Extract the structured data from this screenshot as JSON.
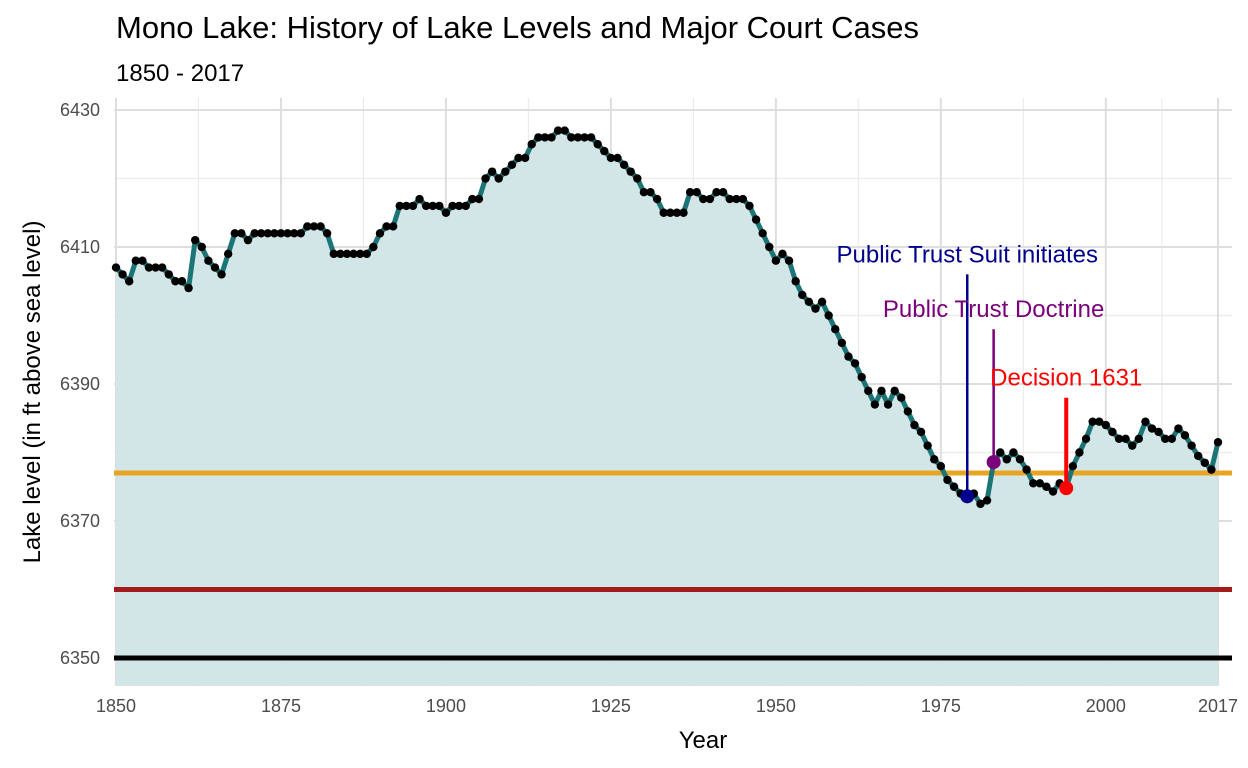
{
  "chart_data": {
    "type": "area",
    "title": "Mono Lake: History of Lake Levels and Major Court Cases",
    "subtitle": "1850 - 2017",
    "xlabel": "Year",
    "ylabel": "Lake level (in ft above sea level)",
    "xlim": [
      1850,
      2017
    ],
    "ylim": [
      6347,
      6430
    ],
    "x_ticks": [
      1850,
      1875,
      1900,
      1925,
      1950,
      1975,
      2000,
      2017
    ],
    "x_tick_labels": [
      "1850",
      "1875",
      "1900",
      "1925",
      "1950",
      "1975",
      "2000",
      "2017"
    ],
    "y_ticks": [
      6350,
      6370,
      6390,
      6410,
      6430
    ],
    "y_tick_labels": [
      "6350",
      "6370",
      "6390",
      "6410",
      "6430"
    ],
    "grid": true,
    "colors": {
      "area_fill": "#d0e5e6",
      "line": "#1b7576",
      "points": "#000000",
      "stable_level": "#e8a524",
      "threshold_level": "#a31c1c",
      "base_level": "#000000"
    },
    "reference_lines": [
      {
        "y": 6377,
        "color": "#e8a524"
      },
      {
        "y": 6360,
        "color": "#a31c1c"
      },
      {
        "y": 6350,
        "color": "#000000"
      }
    ],
    "annotations": [
      {
        "label": "Public Trust Suit initiates",
        "year": 1979,
        "level": 6373.6,
        "label_level": 6406,
        "color": "#00008b"
      },
      {
        "label": "Public Trust Doctrine",
        "year": 1983,
        "level": 6378.6,
        "label_level": 6398,
        "color": "#7a007a"
      },
      {
        "label": "Decision 1631",
        "year": 1994,
        "level": 6374.8,
        "label_level": 6388,
        "color": "#ff0000"
      }
    ],
    "series": [
      {
        "x": [
          1850,
          1851,
          1852,
          1853,
          1854,
          1855,
          1856,
          1857,
          1858,
          1859,
          1860,
          1861,
          1862,
          1863,
          1864,
          1865,
          1866,
          1867,
          1868,
          1869,
          1870,
          1871,
          1872,
          1873,
          1874,
          1875,
          1876,
          1877,
          1878,
          1879,
          1880,
          1881,
          1882,
          1883,
          1884,
          1885,
          1886,
          1887,
          1888,
          1889,
          1890,
          1891,
          1892,
          1893,
          1894,
          1895,
          1896,
          1897,
          1898,
          1899,
          1900,
          1901,
          1902,
          1903,
          1904,
          1905,
          1906,
          1907,
          1908,
          1909,
          1910,
          1911,
          1912,
          1913,
          1914,
          1915,
          1916,
          1917,
          1918,
          1919,
          1920,
          1921,
          1922,
          1923,
          1924,
          1925,
          1926,
          1927,
          1928,
          1929,
          1930,
          1931,
          1932,
          1933,
          1934,
          1935,
          1936,
          1937,
          1938,
          1939,
          1940,
          1941,
          1942,
          1943,
          1944,
          1945,
          1946,
          1947,
          1948,
          1949,
          1950,
          1951,
          1952,
          1953,
          1954,
          1955,
          1956,
          1957,
          1958,
          1959,
          1960,
          1961,
          1962,
          1963,
          1964,
          1965,
          1966,
          1967,
          1968,
          1969,
          1970,
          1971,
          1972,
          1973,
          1974,
          1975,
          1976,
          1977,
          1978,
          1979,
          1980,
          1981,
          1982,
          1983,
          1984,
          1985,
          1986,
          1987,
          1988,
          1989,
          1990,
          1991,
          1992,
          1993,
          1994,
          1995,
          1996,
          1997,
          1998,
          1999,
          2000,
          2001,
          2002,
          2003,
          2004,
          2005,
          2006,
          2007,
          2008,
          2009,
          2010,
          2011,
          2012,
          2013,
          2014,
          2015,
          2016,
          2017
        ],
        "values": [
          6407,
          6406,
          6405,
          6408,
          6408,
          6407,
          6407,
          6407,
          6406,
          6405,
          6405,
          6404,
          6411,
          6410,
          6408,
          6407,
          6406,
          6409,
          6412,
          6412,
          6411,
          6412,
          6412,
          6412,
          6412,
          6412,
          6412,
          6412,
          6412,
          6413,
          6413,
          6413,
          6412,
          6409,
          6409,
          6409,
          6409,
          6409,
          6409,
          6410,
          6412,
          6413,
          6413,
          6416,
          6416,
          6416,
          6417,
          6416,
          6416,
          6416,
          6415,
          6416,
          6416,
          6416,
          6417,
          6417,
          6420,
          6421,
          6420,
          6421,
          6422,
          6423,
          6423,
          6425,
          6426,
          6426,
          6426,
          6427,
          6427,
          6426,
          6426,
          6426,
          6426,
          6425,
          6424,
          6423,
          6423,
          6422,
          6421,
          6420,
          6418,
          6418,
          6417,
          6415,
          6415,
          6415,
          6415,
          6418,
          6418,
          6417,
          6417,
          6418,
          6418,
          6417,
          6417,
          6417,
          6416,
          6414,
          6412,
          6410,
          6408,
          6409,
          6408,
          6405,
          6403,
          6402,
          6401,
          6402,
          6400,
          6398,
          6396,
          6394,
          6393,
          6391,
          6389,
          6387,
          6389,
          6387,
          6389,
          6388,
          6386,
          6384,
          6383,
          6381,
          6379,
          6378,
          6376,
          6375,
          6374,
          6373.6,
          6374,
          6372.5,
          6373,
          6378.6,
          6380,
          6379,
          6380,
          6379,
          6377.5,
          6375.5,
          6375.5,
          6375,
          6374.3,
          6375.5,
          6374.8,
          6378,
          6380,
          6382,
          6384.5,
          6384.5,
          6384,
          6383,
          6382,
          6382,
          6381,
          6382,
          6384.5,
          6383.5,
          6383,
          6382,
          6382,
          6383.5,
          6382.5,
          6381,
          6379.5,
          6378.5,
          6377.5,
          6381.5
        ]
      }
    ]
  }
}
